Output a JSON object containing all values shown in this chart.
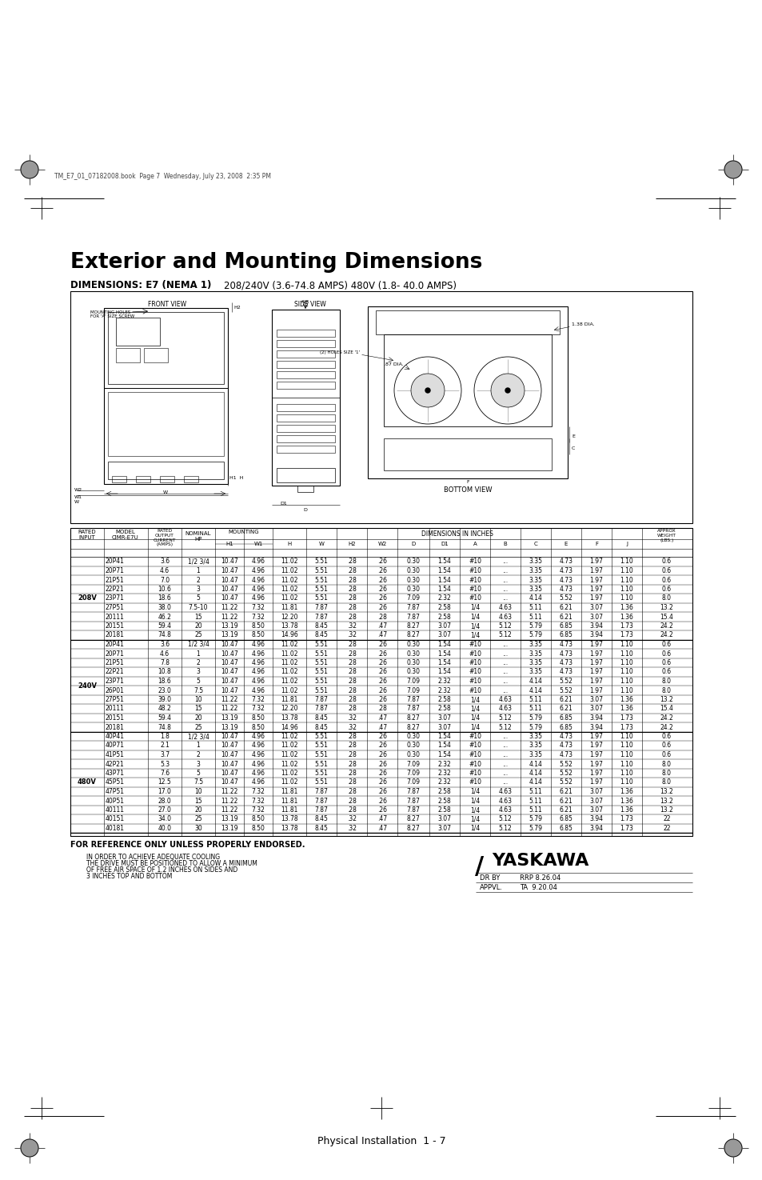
{
  "title": "Exterior and Mounting Dimensions",
  "subtitle_bold": "DIMENSIONS: E7 (NEMA 1)",
  "subtitle_normal": "208/240V (3.6-74.8 AMPS) 480V (1.8- 40.0 AMPS)",
  "header_note": "TM_E7_01_07182008.book  Page 7  Wednesday, July 23, 2008  2:35 PM",
  "footer_text": "Physical Installation  1 - 7",
  "for_reference": "FOR REFERENCE ONLY UNLESS PROPERLY ENDORSED.",
  "cooling_note1": "IN ORDER TO ACHIEVE ADEQUATE COOLING",
  "cooling_note2": "THE DRIVE MUST BE POSITIONED TO ALLOW A MINIMUM",
  "cooling_note3": "OF FREE AIR SPACE OF 1.2 INCHES ON SIDES AND",
  "cooling_note4": "3 INCHES TOP AND BOTTOM",
  "drby_label": "DR BY",
  "drby_val": "RRP 8.26.04",
  "appvl_label": "APPVL.",
  "appvl_val": "TA  9.20.04",
  "sections": [
    {
      "label": "208V",
      "rows": [
        [
          "20P41",
          "3.6",
          "1/2 3/4",
          "10.47",
          "4.96",
          "11.02",
          "5.51",
          ".28",
          ".26",
          "0.30",
          "1.54",
          "#10",
          "...",
          "3.35",
          "4.73",
          "1.97",
          "1.10",
          "0.6"
        ],
        [
          "20P71",
          "4.6",
          "1",
          "10.47",
          "4.96",
          "11.02",
          "5.51",
          ".28",
          ".26",
          "0.30",
          "1.54",
          "#10",
          "...",
          "3.35",
          "4.73",
          "1.97",
          "1.10",
          "0.6"
        ],
        [
          "21P51",
          "7.0",
          "2",
          "10.47",
          "4.96",
          "11.02",
          "5.51",
          ".28",
          ".26",
          "0.30",
          "1.54",
          "#10",
          "...",
          "3.35",
          "4.73",
          "1.97",
          "1.10",
          "0.6"
        ],
        [
          "22P21",
          "10.6",
          "3",
          "10.47",
          "4.96",
          "11.02",
          "5.51",
          ".28",
          ".26",
          "0.30",
          "1.54",
          "#10",
          "...",
          "3.35",
          "4.73",
          "1.97",
          "1.10",
          "0.6"
        ],
        [
          "23P71",
          "18.6",
          "5",
          "10.47",
          "4.96",
          "11.02",
          "5.51",
          ".28",
          ".26",
          "7.09",
          "2.32",
          "#10",
          "...",
          "4.14",
          "5.52",
          "1.97",
          "1.10",
          "8.0"
        ],
        [
          "27P51",
          "38.0",
          "7.5-10",
          "11.22",
          "7.32",
          "11.81",
          "7.87",
          ".28",
          ".26",
          "7.87",
          "2.58",
          "1/4",
          "4.63",
          "5.11",
          "6.21",
          "3.07",
          "1.36",
          "13.2"
        ],
        [
          "20111",
          "46.2",
          "15",
          "11.22",
          "7.32",
          "12.20",
          "7.87",
          ".28",
          ".28",
          "7.87",
          "2.58",
          "1/4",
          "4.63",
          "5.11",
          "6.21",
          "3.07",
          "1.36",
          "15.4"
        ],
        [
          "20151",
          "59.4",
          "20",
          "13.19",
          "8.50",
          "13.78",
          "8.45",
          ".32",
          ".47",
          "8.27",
          "3.07",
          "1/4",
          "5.12",
          "5.79",
          "6.85",
          "3.94",
          "1.73",
          "24.2"
        ],
        [
          "20181",
          "74.8",
          "25",
          "13.19",
          "8.50",
          "14.96",
          "8.45",
          ".32",
          ".47",
          "8.27",
          "3.07",
          "1/4",
          "5.12",
          "5.79",
          "6.85",
          "3.94",
          "1.73",
          "24.2"
        ]
      ]
    },
    {
      "label": "240V",
      "rows": [
        [
          "20P41",
          "3.6",
          "1/2 3/4",
          "10.47",
          "4.96",
          "11.02",
          "5.51",
          ".28",
          ".26",
          "0.30",
          "1.54",
          "#10",
          "...",
          "3.35",
          "4.73",
          "1.97",
          "1.10",
          "0.6"
        ],
        [
          "20P71",
          "4.6",
          "1",
          "10.47",
          "4.96",
          "11.02",
          "5.51",
          ".28",
          ".26",
          "0.30",
          "1.54",
          "#10",
          "...",
          "3.35",
          "4.73",
          "1.97",
          "1.10",
          "0.6"
        ],
        [
          "21P51",
          "7.8",
          "2",
          "10.47",
          "4.96",
          "11.02",
          "5.51",
          ".28",
          ".26",
          "0.30",
          "1.54",
          "#10",
          "...",
          "3.35",
          "4.73",
          "1.97",
          "1.10",
          "0.6"
        ],
        [
          "22P21",
          "10.8",
          "3",
          "10.47",
          "4.96",
          "11.02",
          "5.51",
          ".28",
          ".26",
          "0.30",
          "1.54",
          "#10",
          "...",
          "3.35",
          "4.73",
          "1.97",
          "1.10",
          "0.6"
        ],
        [
          "23P71",
          "18.6",
          "5",
          "10.47",
          "4.96",
          "11.02",
          "5.51",
          ".28",
          ".26",
          "7.09",
          "2.32",
          "#10",
          "...",
          "4.14",
          "5.52",
          "1.97",
          "1.10",
          "8.0"
        ],
        [
          "26P01",
          "23.0",
          "7.5",
          "10.47",
          "4.96",
          "11.02",
          "5.51",
          ".28",
          ".26",
          "7.09",
          "2.32",
          "#10",
          "...",
          "4.14",
          "5.52",
          "1.97",
          "1.10",
          "8.0"
        ],
        [
          "27P51",
          "39.0",
          "10",
          "11.22",
          "7.32",
          "11.81",
          "7.87",
          ".28",
          ".26",
          "7.87",
          "2.58",
          "1/4",
          "4.63",
          "5.11",
          "6.21",
          "3.07",
          "1.36",
          "13.2"
        ],
        [
          "20111",
          "48.2",
          "15",
          "11.22",
          "7.32",
          "12.20",
          "7.87",
          ".28",
          ".28",
          "7.87",
          "2.58",
          "1/4",
          "4.63",
          "5.11",
          "6.21",
          "3.07",
          "1.36",
          "15.4"
        ],
        [
          "20151",
          "59.4",
          "20",
          "13.19",
          "8.50",
          "13.78",
          "8.45",
          ".32",
          ".47",
          "8.27",
          "3.07",
          "1/4",
          "5.12",
          "5.79",
          "6.85",
          "3.94",
          "1.73",
          "24.2"
        ],
        [
          "20181",
          "74.8",
          "25",
          "13.19",
          "8.50",
          "14.96",
          "8.45",
          ".32",
          ".47",
          "8.27",
          "3.07",
          "1/4",
          "5.12",
          "5.79",
          "6.85",
          "3.94",
          "1.73",
          "24.2"
        ]
      ]
    },
    {
      "label": "480V",
      "rows": [
        [
          "40P41",
          "1.8",
          "1/2 3/4",
          "10.47",
          "4.96",
          "11.02",
          "5.51",
          ".28",
          ".26",
          "0.30",
          "1.54",
          "#10",
          "...",
          "3.35",
          "4.73",
          "1.97",
          "1.10",
          "0.6"
        ],
        [
          "40P71",
          "2.1",
          "1",
          "10.47",
          "4.96",
          "11.02",
          "5.51",
          ".28",
          ".26",
          "0.30",
          "1.54",
          "#10",
          "...",
          "3.35",
          "4.73",
          "1.97",
          "1.10",
          "0.6"
        ],
        [
          "41P51",
          "3.7",
          "2",
          "10.47",
          "4.96",
          "11.02",
          "5.51",
          ".28",
          ".26",
          "0.30",
          "1.54",
          "#10",
          "...",
          "3.35",
          "4.73",
          "1.97",
          "1.10",
          "0.6"
        ],
        [
          "42P21",
          "5.3",
          "3",
          "10.47",
          "4.96",
          "11.02",
          "5.51",
          ".28",
          ".26",
          "7.09",
          "2.32",
          "#10",
          "...",
          "4.14",
          "5.52",
          "1.97",
          "1.10",
          "8.0"
        ],
        [
          "43P71",
          "7.6",
          "5",
          "10.47",
          "4.96",
          "11.02",
          "5.51",
          ".28",
          ".26",
          "7.09",
          "2.32",
          "#10",
          "...",
          "4.14",
          "5.52",
          "1.97",
          "1.10",
          "8.0"
        ],
        [
          "45P51",
          "12.5",
          "7.5",
          "10.47",
          "4.96",
          "11.02",
          "5.51",
          ".28",
          ".26",
          "7.09",
          "2.32",
          "#10",
          "...",
          "4.14",
          "5.52",
          "1.97",
          "1.10",
          "8.0"
        ],
        [
          "47P51",
          "17.0",
          "10",
          "11.22",
          "7.32",
          "11.81",
          "7.87",
          ".28",
          ".26",
          "7.87",
          "2.58",
          "1/4",
          "4.63",
          "5.11",
          "6.21",
          "3.07",
          "1.36",
          "13.2"
        ],
        [
          "40P51",
          "28.0",
          "15",
          "11.22",
          "7.32",
          "11.81",
          "7.87",
          ".28",
          ".26",
          "7.87",
          "2.58",
          "1/4",
          "4.63",
          "5.11",
          "6.21",
          "3.07",
          "1.36",
          "13.2"
        ],
        [
          "40111",
          "27.0",
          "20",
          "11.22",
          "7.32",
          "11.81",
          "7.87",
          ".28",
          ".26",
          "7.87",
          "2.58",
          "1/4",
          "4.63",
          "5.11",
          "6.21",
          "3.07",
          "1.36",
          "13.2"
        ],
        [
          "40151",
          "34.0",
          "25",
          "13.19",
          "8.50",
          "13.78",
          "8.45",
          ".32",
          ".47",
          "8.27",
          "3.07",
          "1/4",
          "5.12",
          "5.79",
          "6.85",
          "3.94",
          "1.73",
          "22"
        ],
        [
          "40181",
          "40.0",
          "30",
          "13.19",
          "8.50",
          "13.78",
          "8.45",
          ".32",
          ".47",
          "8.27",
          "3.07",
          "1/4",
          "5.12",
          "5.79",
          "6.85",
          "3.94",
          "1.73",
          "22"
        ]
      ]
    }
  ]
}
